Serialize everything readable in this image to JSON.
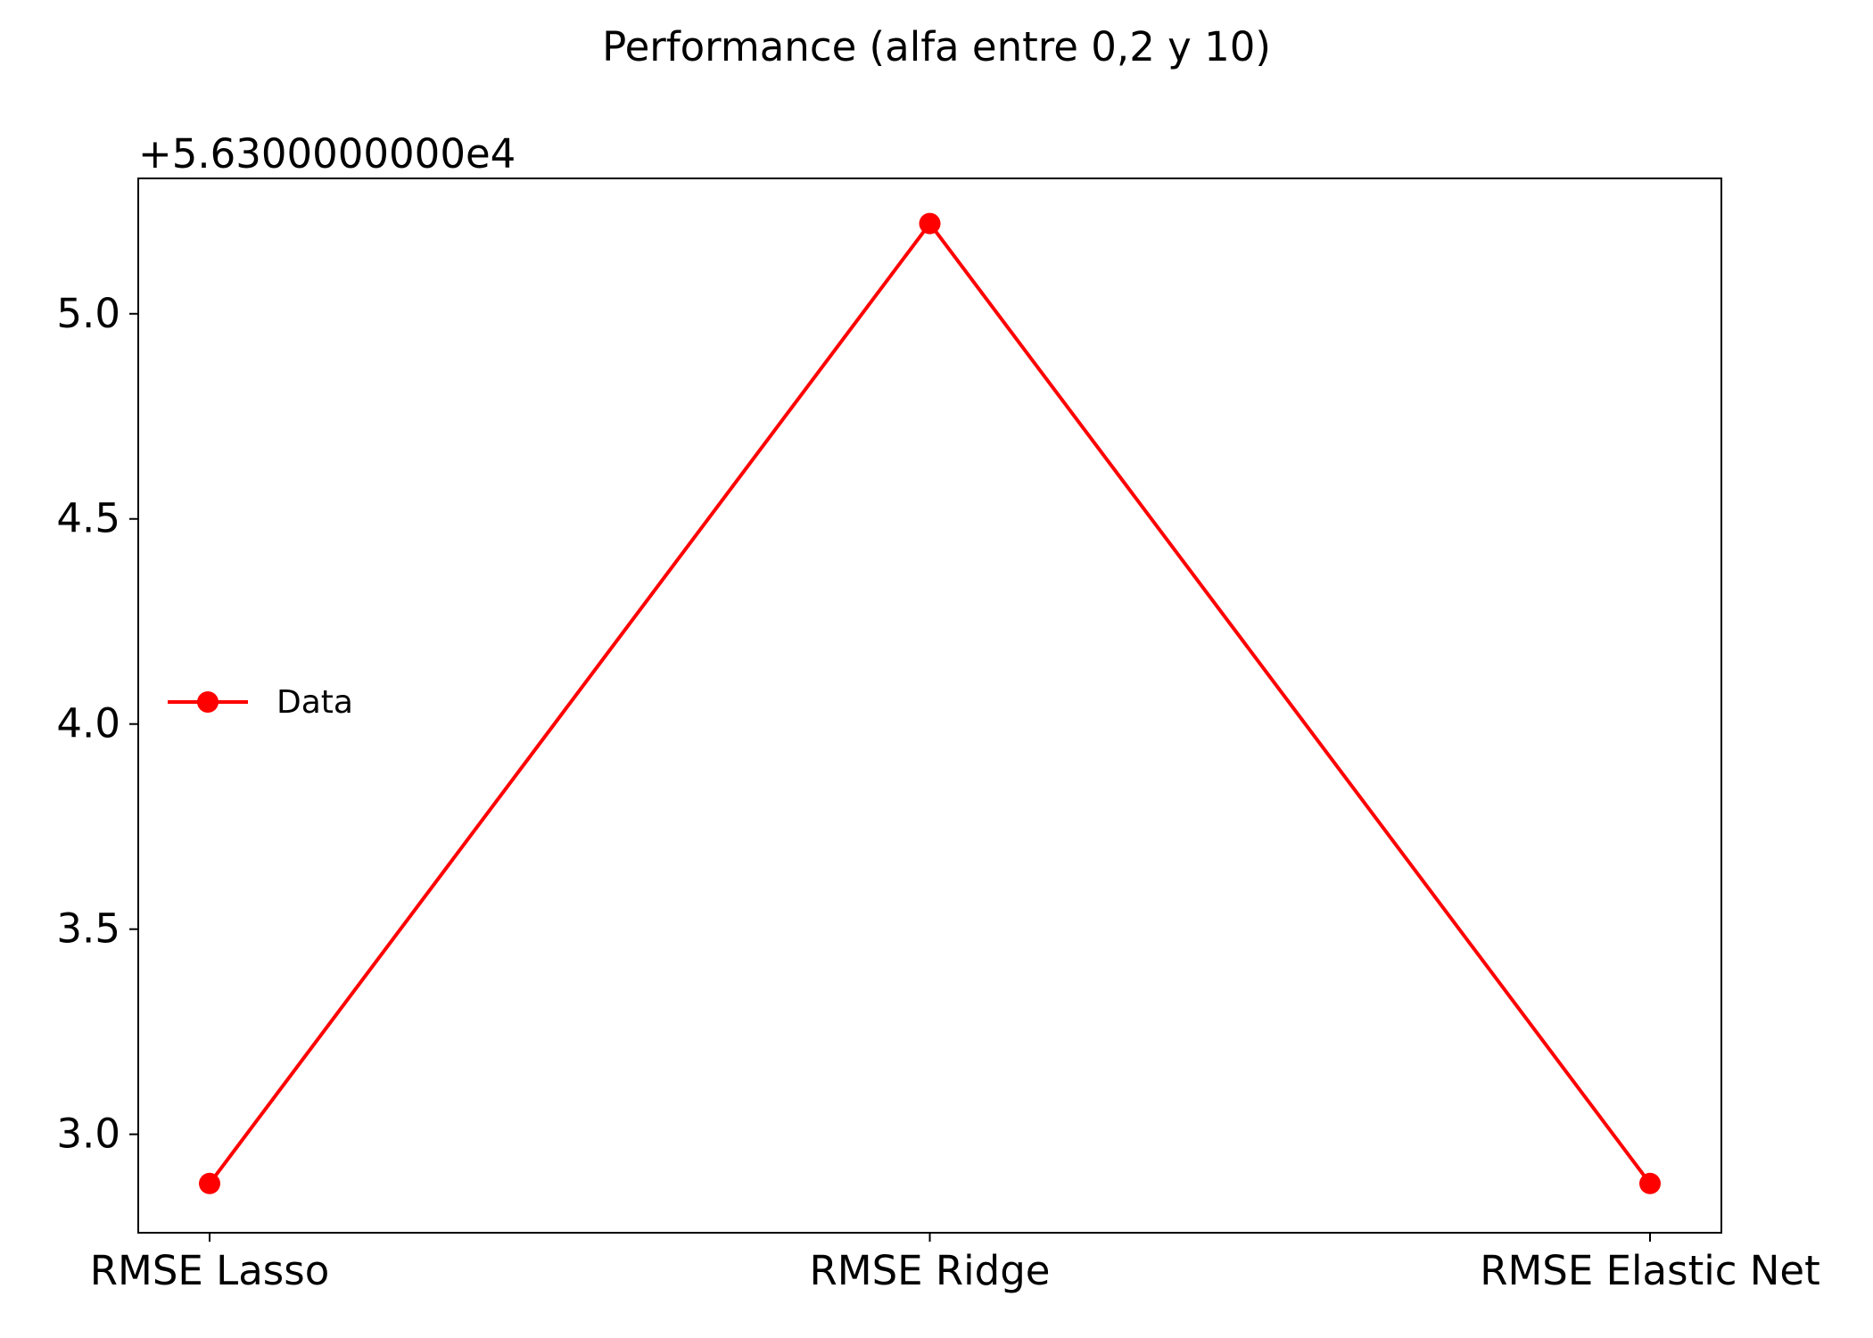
{
  "chart_data": {
    "type": "line",
    "title": "Performance (alfa entre 0,2 y 10)",
    "categories": [
      "RMSE Lasso",
      "RMSE Ridge",
      "RMSE Elastic Net"
    ],
    "series": [
      {
        "name": "Data",
        "values": [
          56302.88,
          56305.22,
          56302.88
        ],
        "color": "#ff0000",
        "marker": "circle"
      }
    ],
    "y_offset": 56300,
    "y_offset_label": "+5.6300000000e4",
    "ylim_offset_units": [
      2.76,
      5.33
    ],
    "yticks": [
      3.0,
      3.5,
      4.0,
      4.5,
      5.0
    ],
    "ytick_labels": [
      "3.0",
      "3.5",
      "4.0",
      "4.5",
      "5.0"
    ],
    "xlabel": "",
    "ylabel": "",
    "legend": {
      "placement": "center-left"
    },
    "grid": false
  }
}
